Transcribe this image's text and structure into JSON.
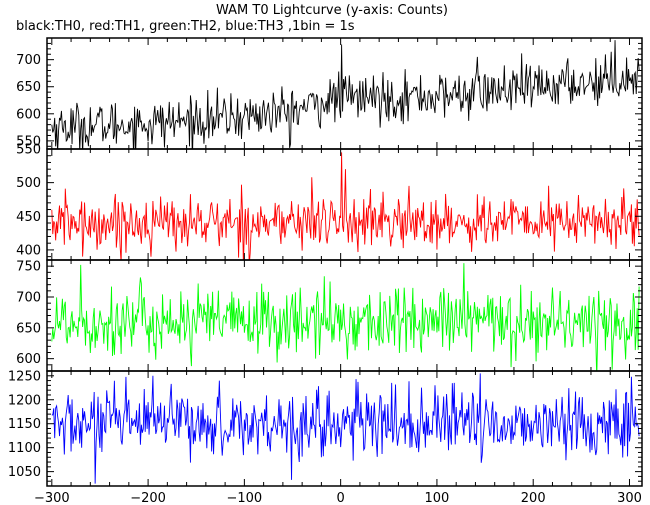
{
  "chart_data": {
    "type": "line",
    "title": "WAM T0 Lightcurve (y-axis: Counts)",
    "subtitle": "black:TH0, red:TH1, green:TH2, blue:TH3 ,1bin = 1s",
    "xlabel": "",
    "ylabel": "",
    "grid": false,
    "xlim": [
      -305,
      313
    ],
    "x_ticks": [
      -300,
      -200,
      -100,
      0,
      100,
      200,
      300
    ],
    "bin_seconds": 1,
    "panels": [
      {
        "name": "TH0",
        "color": "#000000",
        "ylim": [
          535,
          740
        ],
        "y_ticks": [
          550,
          600,
          650,
          700
        ],
        "trend_x": [
          -300,
          -200,
          -100,
          -50,
          0,
          100,
          200,
          300,
          310
        ],
        "trend_y": [
          575,
          582,
          595,
          605,
          630,
          632,
          648,
          668,
          672
        ],
        "noise": 22,
        "spikes": [
          {
            "x": 1,
            "y": 728
          },
          {
            "x": 285,
            "y": 736
          },
          {
            "x": 142,
            "y": 705
          },
          {
            "x": -52,
            "y": 545
          }
        ]
      },
      {
        "name": "TH1",
        "color": "#ff0000",
        "ylim": [
          385,
          550
        ],
        "y_ticks": [
          400,
          450,
          500,
          550
        ],
        "trend_x": [
          -300,
          310
        ],
        "trend_y": [
          440,
          442
        ],
        "noise": 20,
        "spikes": [
          {
            "x": 1,
            "y": 545
          },
          {
            "x": 5,
            "y": 520
          },
          {
            "x": -268,
            "y": 390
          },
          {
            "x": -30,
            "y": 508
          }
        ]
      },
      {
        "name": "TH2",
        "color": "#00ff00",
        "ylim": [
          580,
          760
        ],
        "y_ticks": [
          600,
          650,
          700,
          750
        ],
        "trend_x": [
          -300,
          310
        ],
        "trend_y": [
          660,
          660
        ],
        "noise": 28,
        "spikes": [
          {
            "x": -270,
            "y": 752
          },
          {
            "x": 128,
            "y": 755
          },
          {
            "x": 282,
            "y": 582
          },
          {
            "x": -155,
            "y": 588
          }
        ]
      },
      {
        "name": "TH3",
        "color": "#0000ff",
        "ylim": [
          1020,
          1260
        ],
        "y_ticks": [
          1050,
          1100,
          1150,
          1200,
          1250
        ],
        "trend_x": [
          -300,
          310
        ],
        "trend_y": [
          1150,
          1150
        ],
        "noise": 35,
        "spikes": [
          {
            "x": 145,
            "y": 1255
          },
          {
            "x": -255,
            "y": 1025
          },
          {
            "x": -195,
            "y": 1250
          },
          {
            "x": 302,
            "y": 1248
          }
        ]
      }
    ]
  }
}
